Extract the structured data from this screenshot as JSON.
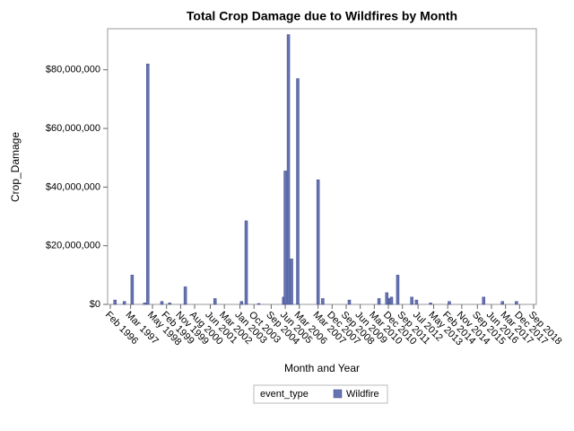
{
  "chart_data": {
    "type": "bar",
    "title": "Total Crop Damage due to Wildfires by Month",
    "x_label": "Month and Year",
    "y_label": "Crop_Damage",
    "legend_title": "event_type",
    "series": [
      {
        "name": "Wildfire",
        "color": "#6673b3",
        "x": [
          "May 1996",
          "Nov 1996",
          "Apr 1997",
          "Dec 1997",
          "Feb 1998",
          "Nov 1998",
          "Apr 1999",
          "Feb 2000",
          "Sep 2001",
          "Feb 2003",
          "May 2003",
          "Jan 2004",
          "May 2005",
          "Jun 2005",
          "Aug 2005",
          "Oct 2005",
          "Feb 2006",
          "Mar 2007",
          "Jun 2007",
          "Nov 2008",
          "Jun 2010",
          "Nov 2010",
          "Jan 2011",
          "Feb 2011",
          "Jun 2011",
          "Mar 2012",
          "Jun 2012",
          "Mar 2013",
          "Mar 2014",
          "Jan 2016",
          "Jan 2017",
          "Oct 2017"
        ],
        "values": [
          1500000,
          1000000,
          10000000,
          500000,
          82000000,
          1000000,
          500000,
          6000000,
          2000000,
          1000000,
          28500000,
          300000,
          2500000,
          45500000,
          92000000,
          15500000,
          77000000,
          42500000,
          2000000,
          1500000,
          2000000,
          4000000,
          2000000,
          2500000,
          10000000,
          2500000,
          1500000,
          500000,
          1000000,
          2500000,
          1000000,
          1000000
        ]
      }
    ],
    "xticks": [
      "Feb 1996",
      "Mar 1997",
      "May 1998",
      "Feb 1999",
      "Nov 1999",
      "Aug 2000",
      "Jun 2001",
      "Mar 2002",
      "Jan 2003",
      "Oct 2003",
      "Sep 2004",
      "Jun 2005",
      "Mar 2006",
      "Mar 2007",
      "Dec 2007",
      "Sep 2008",
      "Jun 2009",
      "Mar 2010",
      "Dec 2010",
      "Sep 2011",
      "Jul 2012",
      "May 2013",
      "Feb 2014",
      "Nov 2014",
      "Sep 2015",
      "Jun 2016",
      "Mar 2017",
      "Dec 2017",
      "Sep 2018"
    ],
    "ylim": [
      0,
      94000000
    ],
    "yticks": [
      {
        "value": 0,
        "label": "$0"
      },
      {
        "value": 20000000,
        "label": "$20,000,000"
      },
      {
        "value": 40000000,
        "label": "$40,000,000"
      },
      {
        "value": 60000000,
        "label": "$60,000,000"
      },
      {
        "value": 80000000,
        "label": "$80,000,000"
      }
    ]
  }
}
